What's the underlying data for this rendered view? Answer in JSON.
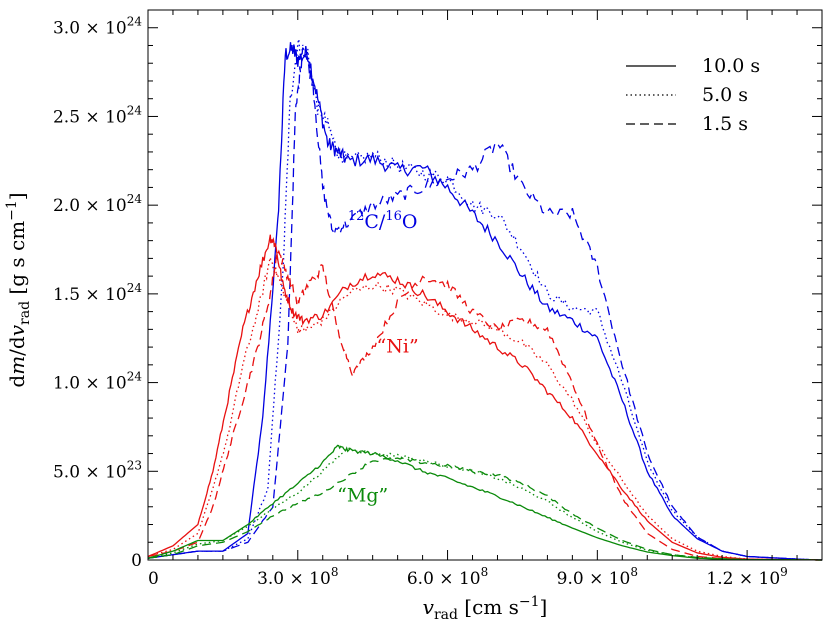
{
  "chart_data": {
    "type": "line",
    "title": "",
    "xlabel": "v_rad [cm s^-1]",
    "ylabel": "dm/dv_rad [g s cm^-1]",
    "xlim": [
      0,
      1350000000.0
    ],
    "ylim": [
      0,
      3.1e+24
    ],
    "x_ticks": [
      {
        "value": 0,
        "label": "0"
      },
      {
        "value": 300000000.0,
        "label": "3.0×10^8"
      },
      {
        "value": 600000000.0,
        "label": "6.0×10^8"
      },
      {
        "value": 900000000.0,
        "label": "9.0×10^8"
      },
      {
        "value": 1200000000.0,
        "label": "1.2×10^9"
      }
    ],
    "y_ticks": [
      {
        "value": 0,
        "label": "0"
      },
      {
        "value": 5e+23,
        "label": "5.0×10^23"
      },
      {
        "value": 1e+24,
        "label": "1.0×10^24"
      },
      {
        "value": 1.5e+24,
        "label": "1.5×10^24"
      },
      {
        "value": 2e+24,
        "label": "2.0×10^24"
      },
      {
        "value": 2.5e+24,
        "label": "2.5×10^24"
      },
      {
        "value": 3e+24,
        "label": "3.0×10^24"
      }
    ],
    "grid": false,
    "legend": {
      "placement": "top-right",
      "entries": [
        {
          "label": "10.0 s",
          "style": "solid"
        },
        {
          "label": "5.0 s",
          "style": "dotted"
        },
        {
          "label": "1.5 s",
          "style": "dashed"
        }
      ]
    },
    "colors": {
      "co": "#0000e0",
      "ni": "#e81010",
      "mg": "#0a8a0a"
    },
    "series_labels": [
      {
        "key": "co",
        "text": "12C/16O",
        "x": 470000000.0,
        "y": 1.87e+24
      },
      {
        "key": "ni",
        "text": "“Ni”",
        "x": 500000000.0,
        "y": 1.17e+24
      },
      {
        "key": "mg",
        "text": "“Mg”",
        "x": 430000000.0,
        "y": 3.3e+23
      }
    ],
    "series": [
      {
        "key": "co",
        "style": "solid",
        "x": [
          0,
          50000000.0,
          100000000.0,
          150000000.0,
          200000000.0,
          230000000.0,
          260000000.0,
          275000000.0,
          290000000.0,
          300000000.0,
          320000000.0,
          340000000.0,
          360000000.0,
          380000000.0,
          400000000.0,
          450000000.0,
          500000000.0,
          550000000.0,
          600000000.0,
          650000000.0,
          700000000.0,
          750000000.0,
          800000000.0,
          850000000.0,
          900000000.0,
          950000000.0,
          1000000000.0,
          1050000000.0,
          1100000000.0,
          1150000000.0,
          1200000000.0,
          1300000000.0,
          1350000000.0
        ],
        "y": [
          1e+22,
          3e+22,
          5e+22,
          5e+22,
          1.5e+23,
          8e+23,
          1.9e+24,
          2.85e+24,
          2.88e+24,
          2.82e+24,
          2.86e+24,
          2.6e+24,
          2.35e+24,
          2.3e+24,
          2.25e+24,
          2.26e+24,
          2.2e+24,
          2.21e+24,
          2.1e+24,
          1.95e+24,
          1.8e+24,
          1.6e+24,
          1.42e+24,
          1.35e+24,
          1.25e+24,
          9e+23,
          5e+23,
          2.5e+23,
          1.2e+23,
          5e+22,
          2e+22,
          5e+21,
          0
        ]
      },
      {
        "key": "co",
        "style": "dotted",
        "x": [
          0,
          50000000.0,
          100000000.0,
          150000000.0,
          200000000.0,
          240000000.0,
          270000000.0,
          285000000.0,
          300000000.0,
          320000000.0,
          340000000.0,
          360000000.0,
          380000000.0,
          400000000.0,
          450000000.0,
          500000000.0,
          550000000.0,
          600000000.0,
          650000000.0,
          700000000.0,
          750000000.0,
          800000000.0,
          850000000.0,
          900000000.0,
          950000000.0,
          1000000000.0,
          1050000000.0,
          1100000000.0,
          1150000000.0,
          1200000000.0,
          1300000000.0,
          1350000000.0
        ],
        "y": [
          1e+22,
          3e+22,
          5e+22,
          5e+22,
          1.2e+23,
          4e+23,
          1.6e+24,
          2.6e+24,
          2.9e+24,
          2.85e+24,
          2.55e+24,
          2.45e+24,
          2.3e+24,
          2.25e+24,
          2.28e+24,
          2.22e+24,
          2.18e+24,
          2.15e+24,
          2e+24,
          1.95e+24,
          1.75e+24,
          1.5e+24,
          1.42e+24,
          1.4e+24,
          1e+24,
          5.5e+23,
          2.8e+23,
          1.3e+23,
          5e+22,
          2e+22,
          5e+21,
          0
        ]
      },
      {
        "key": "co",
        "style": "dashed",
        "x": [
          0,
          50000000.0,
          100000000.0,
          150000000.0,
          200000000.0,
          250000000.0,
          280000000.0,
          295000000.0,
          310000000.0,
          330000000.0,
          350000000.0,
          370000000.0,
          400000000.0,
          450000000.0,
          500000000.0,
          550000000.0,
          600000000.0,
          650000000.0,
          700000000.0,
          750000000.0,
          800000000.0,
          850000000.0,
          900000000.0,
          950000000.0,
          1000000000.0,
          1050000000.0,
          1100000000.0,
          1150000000.0,
          1200000000.0,
          1300000000.0,
          1350000000.0
        ],
        "y": [
          1e+22,
          3e+22,
          5e+22,
          5e+22,
          1e+23,
          3e+23,
          1.2e+24,
          2.5e+24,
          2.9e+24,
          2.7e+24,
          2.1e+24,
          1.85e+24,
          1.9e+24,
          2e+24,
          2.05e+24,
          2.1e+24,
          2.15e+24,
          2.2e+24,
          2.35e+24,
          2.1e+24,
          1.95e+24,
          1.95e+24,
          1.65e+24,
          1.1e+24,
          6e+23,
          3e+23,
          1.3e+23,
          5e+22,
          2e+22,
          5e+21,
          0
        ]
      },
      {
        "key": "ni",
        "style": "solid",
        "x": [
          0,
          50000000.0,
          100000000.0,
          130000000.0,
          160000000.0,
          190000000.0,
          220000000.0,
          245000000.0,
          255000000.0,
          270000000.0,
          290000000.0,
          310000000.0,
          350000000.0,
          400000000.0,
          450000000.0,
          500000000.0,
          550000000.0,
          600000000.0,
          650000000.0,
          700000000.0,
          750000000.0,
          800000000.0,
          850000000.0,
          900000000.0,
          950000000.0,
          1000000000.0,
          1050000000.0,
          1100000000.0,
          1150000000.0,
          1200000000.0,
          1300000000.0,
          1350000000.0
        ],
        "y": [
          2e+22,
          8e+22,
          2e+23,
          5e+23,
          9e+23,
          1.3e+24,
          1.6e+24,
          1.82e+24,
          1.78e+24,
          1.55e+24,
          1.4e+24,
          1.35e+24,
          1.38e+24,
          1.55e+24,
          1.62e+24,
          1.58e+24,
          1.5e+24,
          1.4e+24,
          1.3e+24,
          1.2e+24,
          1.1e+24,
          9.5e+23,
          8e+23,
          6e+23,
          4e+23,
          2.2e+23,
          1e+23,
          4e+22,
          1.5e+22,
          5e+21,
          1e+21,
          0
        ]
      },
      {
        "key": "ni",
        "style": "dotted",
        "x": [
          0,
          50000000.0,
          100000000.0,
          130000000.0,
          160000000.0,
          190000000.0,
          220000000.0,
          245000000.0,
          260000000.0,
          280000000.0,
          300000000.0,
          320000000.0,
          350000000.0,
          400000000.0,
          450000000.0,
          500000000.0,
          550000000.0,
          600000000.0,
          650000000.0,
          700000000.0,
          750000000.0,
          800000000.0,
          850000000.0,
          900000000.0,
          950000000.0,
          1000000000.0,
          1050000000.0,
          1100000000.0,
          1150000000.0,
          1200000000.0,
          1300000000.0,
          1350000000.0
        ],
        "y": [
          2e+22,
          6e+22,
          1.5e+23,
          4e+23,
          7e+23,
          1.1e+24,
          1.4e+24,
          1.7e+24,
          1.6e+24,
          1.45e+24,
          1.3e+24,
          1.3e+24,
          1.35e+24,
          1.5e+24,
          1.55e+24,
          1.52e+24,
          1.45e+24,
          1.38e+24,
          1.35e+24,
          1.3e+24,
          1.22e+24,
          1.1e+24,
          9e+23,
          6.5e+23,
          4.5e+23,
          2.5e+23,
          1.2e+23,
          5e+22,
          2e+22,
          5e+21,
          1e+21,
          0
        ]
      },
      {
        "key": "ni",
        "style": "dashed",
        "x": [
          0,
          50000000.0,
          100000000.0,
          130000000.0,
          160000000.0,
          190000000.0,
          220000000.0,
          245000000.0,
          260000000.0,
          280000000.0,
          300000000.0,
          320000000.0,
          350000000.0,
          380000000.0,
          410000000.0,
          450000000.0,
          500000000.0,
          550000000.0,
          600000000.0,
          650000000.0,
          700000000.0,
          750000000.0,
          800000000.0,
          850000000.0,
          900000000.0,
          950000000.0,
          1000000000.0,
          1050000000.0,
          1100000000.0,
          1150000000.0,
          1200000000.0,
          1300000000.0,
          1350000000.0
        ],
        "y": [
          2e+22,
          5e+22,
          1e+23,
          3e+23,
          6e+23,
          9e+23,
          1.2e+24,
          1.5e+24,
          1.75e+24,
          1.6e+24,
          1.45e+24,
          1.55e+24,
          1.65e+24,
          1.3e+24,
          1.05e+24,
          1.2e+24,
          1.45e+24,
          1.6e+24,
          1.55e+24,
          1.4e+24,
          1.3e+24,
          1.35e+24,
          1.3e+24,
          1e+24,
          6.5e+23,
          3.5e+23,
          1.5e+23,
          6e+22,
          2e+22,
          8e+21,
          2e+21,
          1e+21,
          0
        ]
      },
      {
        "key": "mg",
        "style": "solid",
        "x": [
          0,
          50000000.0,
          100000000.0,
          150000000.0,
          200000000.0,
          250000000.0,
          300000000.0,
          350000000.0,
          380000000.0,
          400000000.0,
          450000000.0,
          500000000.0,
          550000000.0,
          600000000.0,
          650000000.0,
          700000000.0,
          750000000.0,
          800000000.0,
          850000000.0,
          900000000.0,
          950000000.0,
          1000000000.0,
          1050000000.0,
          1100000000.0,
          1150000000.0,
          1200000000.0,
          1300000000.0,
          1350000000.0
        ],
        "y": [
          1e+22,
          5e+22,
          1.1e+23,
          1.1e+23,
          2e+23,
          3.2e+23,
          4.3e+23,
          5.5e+23,
          6.4e+23,
          6.2e+23,
          6e+23,
          5.6e+23,
          5e+23,
          4.6e+23,
          4.1e+23,
          3.6e+23,
          3e+23,
          2.4e+23,
          1.8e+23,
          1.25e+23,
          8e+22,
          4.5e+22,
          2.5e+22,
          1e+22,
          5e+21,
          2e+21,
          1e+21,
          0
        ]
      },
      {
        "key": "mg",
        "style": "dotted",
        "x": [
          0,
          50000000.0,
          100000000.0,
          150000000.0,
          200000000.0,
          250000000.0,
          300000000.0,
          350000000.0,
          400000000.0,
          450000000.0,
          500000000.0,
          550000000.0,
          600000000.0,
          650000000.0,
          700000000.0,
          750000000.0,
          800000000.0,
          850000000.0,
          900000000.0,
          950000000.0,
          1000000000.0,
          1050000000.0,
          1100000000.0,
          1150000000.0,
          1200000000.0,
          1300000000.0,
          1350000000.0
        ],
        "y": [
          1e+22,
          4e+22,
          9e+22,
          1.1e+23,
          1.9e+23,
          2.9e+23,
          3.8e+23,
          5e+23,
          6.3e+23,
          6e+23,
          5.9e+23,
          5.6e+23,
          5.3e+23,
          5e+23,
          4.6e+23,
          4e+23,
          3.3e+23,
          2.4e+23,
          1.6e+23,
          1e+23,
          5.5e+22,
          3e+22,
          1.3e+22,
          6e+21,
          2e+21,
          1e+21,
          0
        ]
      },
      {
        "key": "mg",
        "style": "dashed",
        "x": [
          0,
          50000000.0,
          100000000.0,
          150000000.0,
          200000000.0,
          250000000.0,
          300000000.0,
          350000000.0,
          400000000.0,
          450000000.0,
          500000000.0,
          550000000.0,
          600000000.0,
          650000000.0,
          700000000.0,
          750000000.0,
          800000000.0,
          850000000.0,
          900000000.0,
          950000000.0,
          1000000000.0,
          1050000000.0,
          1100000000.0,
          1150000000.0,
          1200000000.0,
          1300000000.0,
          1350000000.0
        ],
        "y": [
          1e+22,
          3e+22,
          8e+22,
          1e+23,
          1.6e+23,
          2.5e+23,
          3.2e+23,
          3.8e+23,
          4.7e+23,
          5.6e+23,
          5.7e+23,
          5.5e+23,
          5.3e+23,
          5e+23,
          4.8e+23,
          4.3e+23,
          3.6e+23,
          2.6e+23,
          1.8e+23,
          1.1e+23,
          6e+22,
          3e+22,
          1.5e+22,
          7e+21,
          2e+21,
          1e+21,
          0
        ]
      }
    ]
  }
}
